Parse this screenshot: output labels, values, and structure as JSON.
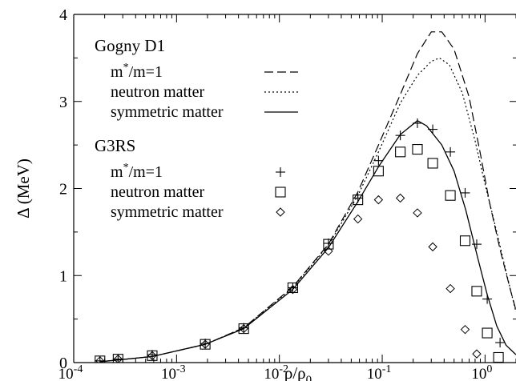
{
  "chart_data": {
    "type": "line",
    "xscale": "log",
    "xlim": [
      0.0001,
      2.0
    ],
    "ylim": [
      0,
      4
    ],
    "ylabel": "Δ (MeV)",
    "xlabel": {
      "base": "ρ/ρ",
      "sub": "0"
    },
    "x_ticks": [
      {
        "value": 0.0001,
        "base": "10",
        "exp": "-4"
      },
      {
        "value": 0.001,
        "base": "10",
        "exp": "-3"
      },
      {
        "value": 0.01,
        "base": "10",
        "exp": "-2"
      },
      {
        "value": 0.1,
        "base": "10",
        "exp": "-1"
      },
      {
        "value": 1,
        "base": "10",
        "exp": "0"
      }
    ],
    "y_ticks": [
      0,
      1,
      2,
      3,
      4
    ],
    "legend": {
      "placement": "top-left",
      "groups": [
        {
          "title": "Gogny D1",
          "entries": [
            {
              "label_main": "m",
              "label_sup": "*",
              "label_rest": "/m=1",
              "series": "gogny_m1"
            },
            {
              "label_main": "neutron matter",
              "label_sup": "",
              "label_rest": "",
              "series": "gogny_neutron"
            },
            {
              "label_main": "symmetric matter",
              "label_sup": "",
              "label_rest": "",
              "series": "gogny_symmetric"
            }
          ]
        },
        {
          "title": "G3RS",
          "entries": [
            {
              "label_main": "m",
              "label_sup": "*",
              "label_rest": "/m=1",
              "series": "g3rs_m1"
            },
            {
              "label_main": "neutron matter",
              "label_sup": "",
              "label_rest": "",
              "series": "g3rs_neutron"
            },
            {
              "label_main": "symmetric matter",
              "label_sup": "",
              "label_rest": "",
              "series": "g3rs_symmetric"
            }
          ]
        }
      ]
    },
    "series": [
      {
        "id": "gogny_m1",
        "style": "dashed",
        "points": [
          [
            0.00018,
            0.01
          ],
          [
            0.00027,
            0.03
          ],
          [
            0.00058,
            0.07
          ],
          [
            0.0019,
            0.21
          ],
          [
            0.0045,
            0.4
          ],
          [
            0.0135,
            0.87
          ],
          [
            0.03,
            1.36
          ],
          [
            0.058,
            1.96
          ],
          [
            0.092,
            2.5
          ],
          [
            0.15,
            3.08
          ],
          [
            0.22,
            3.55
          ],
          [
            0.3,
            3.8
          ],
          [
            0.38,
            3.8
          ],
          [
            0.5,
            3.6
          ],
          [
            0.7,
            3.05
          ],
          [
            0.9,
            2.4
          ],
          [
            1.1,
            1.85
          ],
          [
            1.4,
            1.3
          ],
          [
            1.75,
            0.85
          ],
          [
            2.0,
            0.6
          ]
        ]
      },
      {
        "id": "gogny_neutron",
        "style": "dotted",
        "points": [
          [
            0.00018,
            0.01
          ],
          [
            0.00027,
            0.03
          ],
          [
            0.00058,
            0.07
          ],
          [
            0.0019,
            0.21
          ],
          [
            0.0045,
            0.4
          ],
          [
            0.0135,
            0.86
          ],
          [
            0.03,
            1.35
          ],
          [
            0.058,
            1.92
          ],
          [
            0.092,
            2.42
          ],
          [
            0.15,
            2.98
          ],
          [
            0.22,
            3.3
          ],
          [
            0.3,
            3.46
          ],
          [
            0.36,
            3.5
          ],
          [
            0.45,
            3.42
          ],
          [
            0.6,
            3.1
          ],
          [
            0.8,
            2.55
          ],
          [
            1.0,
            2.05
          ],
          [
            1.3,
            1.5
          ],
          [
            1.65,
            0.98
          ],
          [
            2.0,
            0.58
          ]
        ]
      },
      {
        "id": "gogny_symmetric",
        "style": "solid",
        "points": [
          [
            0.00018,
            0.01
          ],
          [
            0.00027,
            0.03
          ],
          [
            0.00058,
            0.07
          ],
          [
            0.0019,
            0.21
          ],
          [
            0.0045,
            0.39
          ],
          [
            0.0135,
            0.84
          ],
          [
            0.03,
            1.32
          ],
          [
            0.058,
            1.85
          ],
          [
            0.092,
            2.25
          ],
          [
            0.15,
            2.62
          ],
          [
            0.22,
            2.78
          ],
          [
            0.27,
            2.72
          ],
          [
            0.38,
            2.5
          ],
          [
            0.5,
            2.2
          ],
          [
            0.65,
            1.75
          ],
          [
            0.85,
            1.2
          ],
          [
            1.05,
            0.78
          ],
          [
            1.3,
            0.42
          ],
          [
            1.6,
            0.2
          ],
          [
            2.0,
            0.09
          ]
        ]
      },
      {
        "id": "g3rs_m1",
        "style": "plus",
        "points": [
          [
            0.00018,
            0.02
          ],
          [
            0.00027,
            0.04
          ],
          [
            0.00058,
            0.09
          ],
          [
            0.0019,
            0.22
          ],
          [
            0.0045,
            0.4
          ],
          [
            0.0135,
            0.86
          ],
          [
            0.03,
            1.37
          ],
          [
            0.058,
            1.89
          ],
          [
            0.092,
            2.32
          ],
          [
            0.15,
            2.61
          ],
          [
            0.22,
            2.75
          ],
          [
            0.31,
            2.68
          ],
          [
            0.46,
            2.42
          ],
          [
            0.64,
            1.95
          ],
          [
            0.83,
            1.36
          ],
          [
            1.05,
            0.73
          ],
          [
            1.4,
            0.23
          ]
        ]
      },
      {
        "id": "g3rs_neutron",
        "style": "square",
        "points": [
          [
            0.00018,
            0.02
          ],
          [
            0.00027,
            0.04
          ],
          [
            0.00058,
            0.08
          ],
          [
            0.0019,
            0.21
          ],
          [
            0.0045,
            0.39
          ],
          [
            0.0135,
            0.86
          ],
          [
            0.03,
            1.36
          ],
          [
            0.058,
            1.87
          ],
          [
            0.092,
            2.2
          ],
          [
            0.15,
            2.42
          ],
          [
            0.22,
            2.45
          ],
          [
            0.31,
            2.29
          ],
          [
            0.46,
            1.92
          ],
          [
            0.64,
            1.4
          ],
          [
            0.83,
            0.82
          ],
          [
            1.05,
            0.34
          ],
          [
            1.35,
            0.06
          ]
        ]
      },
      {
        "id": "g3rs_symmetric",
        "style": "diamond",
        "points": [
          [
            0.00018,
            0.02
          ],
          [
            0.00027,
            0.04
          ],
          [
            0.00058,
            0.08
          ],
          [
            0.0019,
            0.21
          ],
          [
            0.0045,
            0.39
          ],
          [
            0.0135,
            0.84
          ],
          [
            0.03,
            1.28
          ],
          [
            0.058,
            1.65
          ],
          [
            0.092,
            1.87
          ],
          [
            0.15,
            1.89
          ],
          [
            0.22,
            1.72
          ],
          [
            0.31,
            1.33
          ],
          [
            0.46,
            0.85
          ],
          [
            0.64,
            0.38
          ],
          [
            0.83,
            0.1
          ]
        ]
      }
    ]
  }
}
